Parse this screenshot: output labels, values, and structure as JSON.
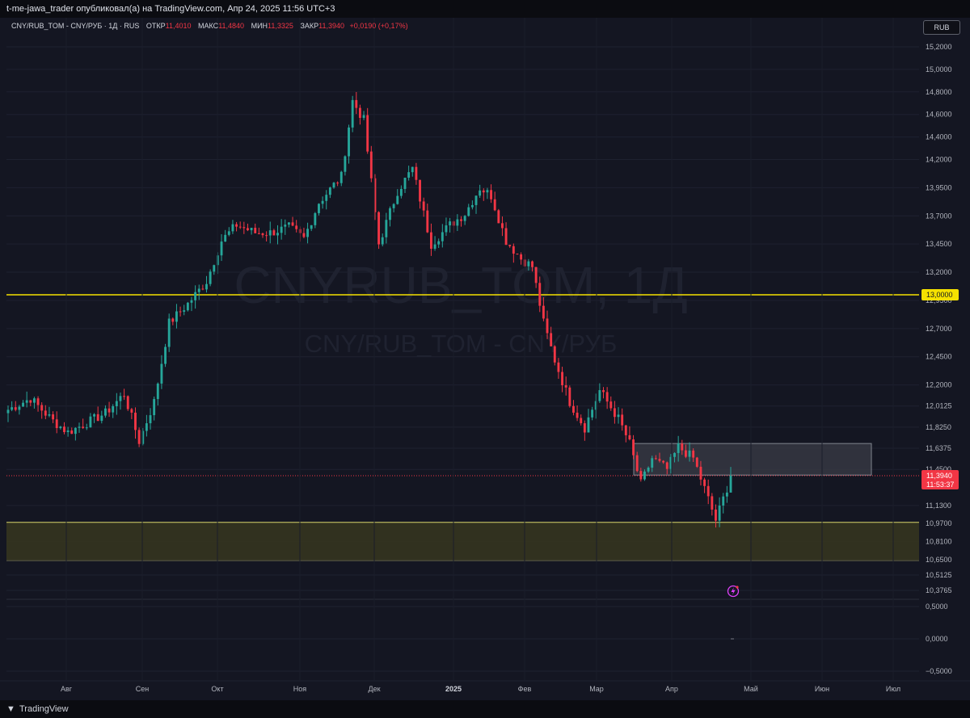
{
  "header": {
    "publish_line": "t-me-jawa_trader опубликовал(а) на TradingView.com, Апр 24, 2025 11:56 UTC+3"
  },
  "legend": {
    "symbol": "CNY/RUB_TOM - CNY/РУБ · 1Д · RUS",
    "open_label": "ОТКР",
    "open_value": "11,4010",
    "high_label": "МАКС",
    "high_value": "11,4840",
    "low_label": "МИН",
    "low_value": "11,3325",
    "close_label": "ЗАКР",
    "close_value": "11,3940",
    "change": "+0,0190 (+0,17%)"
  },
  "currency_badge": "RUB",
  "watermark": {
    "line1": "CNYRUB_TOM, 1Д",
    "line2": "CNY/RUB_TOM - CNY/РУБ"
  },
  "price_tags": {
    "level_label": "13,0000",
    "last_price": "11,3940",
    "countdown": "11:53:37"
  },
  "footer": {
    "logo_glyph": "▼",
    "brand": "TradingView"
  },
  "colors": {
    "up": "#26a69a",
    "down": "#f23645",
    "level_line": "#f5e100",
    "zone_fill": "#34341f",
    "box_fill": "#363842",
    "background": "#141622"
  },
  "chart_data": {
    "type": "candlestick",
    "y_range": [
      10.35,
      15.25
    ],
    "y_ticks": [
      "15,2000",
      "15,0000",
      "14,8000",
      "14,6000",
      "14,4000",
      "14,2000",
      "13,9500",
      "13,7000",
      "13,4500",
      "13,2000",
      "12,9500",
      "12,7000",
      "12,4500",
      "12,2000",
      "12,0125",
      "11,8250",
      "11,6375",
      "11,4500",
      "11,1300",
      "10,9700",
      "10,8100",
      "10,6500",
      "10,5125",
      "10,3765"
    ],
    "y_tick_values": [
      15.2,
      15.0,
      14.8,
      14.6,
      14.4,
      14.2,
      13.95,
      13.7,
      13.45,
      13.2,
      12.95,
      12.7,
      12.45,
      12.2,
      12.0125,
      11.825,
      11.6375,
      11.45,
      11.13,
      10.97,
      10.81,
      10.65,
      10.5125,
      10.3765
    ],
    "x_labels": [
      "Авг",
      "Сен",
      "Окт",
      "Ноя",
      "Дек",
      "2025",
      "Фев",
      "Мар",
      "Апр",
      "Май",
      "Июн",
      "Июл"
    ],
    "levels": [
      13.0
    ],
    "zone": [
      10.64,
      10.98
    ],
    "box": [
      11.4,
      11.68
    ],
    "last_close": 11.394,
    "waypoints": [
      [
        0,
        11.98
      ],
      [
        6,
        12.08
      ],
      [
        12,
        11.88
      ],
      [
        16,
        11.78
      ],
      [
        22,
        11.88
      ],
      [
        26,
        11.95
      ],
      [
        31,
        12.12
      ],
      [
        35,
        11.7
      ],
      [
        39,
        12.05
      ],
      [
        43,
        12.75
      ],
      [
        48,
        12.92
      ],
      [
        53,
        13.12
      ],
      [
        57,
        13.48
      ],
      [
        61,
        13.62
      ],
      [
        66,
        13.55
      ],
      [
        70,
        13.55
      ],
      [
        75,
        13.6
      ],
      [
        79,
        13.5
      ],
      [
        83,
        13.82
      ],
      [
        89,
        14.05
      ],
      [
        92,
        14.72
      ],
      [
        95,
        14.55
      ],
      [
        99,
        13.45
      ],
      [
        104,
        13.92
      ],
      [
        108,
        14.12
      ],
      [
        113,
        13.45
      ],
      [
        118,
        13.62
      ],
      [
        122,
        13.72
      ],
      [
        126,
        13.95
      ],
      [
        129,
        13.88
      ],
      [
        133,
        13.48
      ],
      [
        137,
        13.32
      ],
      [
        140,
        13.25
      ],
      [
        143,
        12.75
      ],
      [
        146,
        12.42
      ],
      [
        150,
        12.05
      ],
      [
        154,
        11.82
      ],
      [
        158,
        12.15
      ],
      [
        163,
        11.9
      ],
      [
        166,
        11.68
      ],
      [
        169,
        11.32
      ],
      [
        172,
        11.55
      ],
      [
        176,
        11.45
      ],
      [
        179,
        11.65
      ],
      [
        183,
        11.55
      ],
      [
        186,
        11.28
      ],
      [
        189,
        11.0
      ],
      [
        193,
        11.38
      ]
    ],
    "indicator": {
      "y_ticks": [
        "0,5000",
        "0,0000",
        "−0,5000"
      ],
      "y_tick_values": [
        0.5,
        0.0,
        -0.5
      ]
    }
  }
}
